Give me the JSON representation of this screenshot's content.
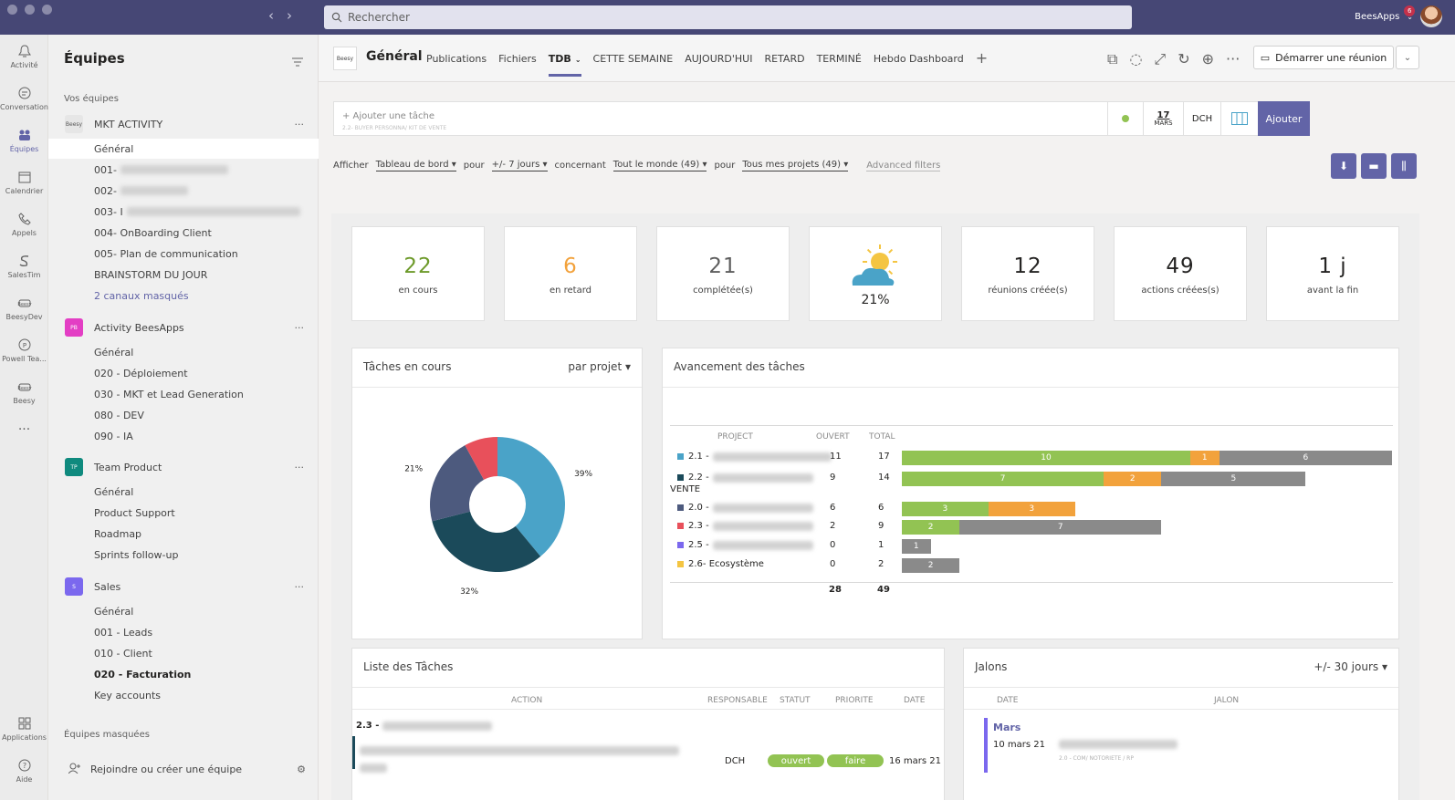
{
  "titlebar": {
    "search_placeholder": "Rechercher",
    "account": "BeesApps",
    "notif_count": "6"
  },
  "rail": [
    {
      "label": "Activité",
      "icon": "bell-icon"
    },
    {
      "label": "Conversation",
      "icon": "chat-icon"
    },
    {
      "label": "Équipes",
      "icon": "teams-icon",
      "active": true
    },
    {
      "label": "Calendrier",
      "icon": "calendar-icon"
    },
    {
      "label": "Appels",
      "icon": "phone-icon"
    },
    {
      "label": "SalesTim",
      "icon": "salestim-icon"
    },
    {
      "label": "BeesyDev",
      "icon": "beesy-icon"
    },
    {
      "label": "Powell Tea...",
      "icon": "powell-icon"
    },
    {
      "label": "Beesy",
      "icon": "beesy-icon"
    }
  ],
  "rail_more": "...",
  "rail_bottom": [
    {
      "label": "Applications",
      "icon": "apps-icon"
    },
    {
      "label": "Aide",
      "icon": "help-icon"
    }
  ],
  "teams_pane": {
    "title": "Équipes",
    "your_teams": "Vos équipes",
    "hidden_teams": "Équipes masquées",
    "join": "Rejoindre ou créer une équipe",
    "teams": [
      {
        "name": "MKT ACTIVITY",
        "logo": "Beesy",
        "color": "#e6e6e6",
        "channels": [
          "Général",
          "001-",
          "002-",
          "003- I",
          "004- OnBoarding Client",
          "005- Plan de communication",
          "BRAINSTORM DU JOUR",
          "2 canaux masqués"
        ]
      },
      {
        "name": "Activity BeesApps",
        "logo": "PB",
        "color": "#e33ec4",
        "channels": [
          "Général",
          "020 - Déploiement",
          "030 - MKT et Lead Generation",
          "080 - DEV",
          "090 - IA"
        ]
      },
      {
        "name": "Team Product",
        "logo": "TP",
        "color": "#0f8a7e",
        "channels": [
          "Général",
          "Product Support",
          "Roadmap",
          "Sprints follow-up"
        ]
      },
      {
        "name": "Sales",
        "logo": "S",
        "color": "#7b68ee",
        "channels": [
          "Général",
          "001 - Leads",
          "010 - Client",
          "020 - Facturation",
          "Key accounts"
        ]
      }
    ]
  },
  "header": {
    "logo": "Beesy",
    "title": "Général",
    "tabs": [
      "Publications",
      "Fichiers",
      "TDB",
      "CETTE SEMAINE",
      "AUJOURD'HUI",
      "RETARD",
      "TERMINÉ",
      "Hebdo Dashboard"
    ],
    "meet_button": "Démarrer une réunion"
  },
  "add_task": {
    "placeholder": "+ Ajouter une tâche",
    "hint": "2.2- BUYER PERSONNA/ KIT DE VENTE",
    "date_day": "17",
    "date_month": "MARS",
    "assignee": "DCH",
    "add_label": "Ajouter"
  },
  "filters": {
    "show": "Afficher",
    "view": "Tableau de bord",
    "for1": "pour",
    "period": "+/- 7 jours",
    "about": "concernant",
    "who": "Tout le monde (49)",
    "for2": "pour",
    "projects": "Tous mes projets (49)",
    "advanced": "Advanced filters"
  },
  "kpis": [
    {
      "value": "22",
      "label": "en cours",
      "color": "#6d9a2a"
    },
    {
      "value": "6",
      "label": "en retard",
      "color": "#f2a23c"
    },
    {
      "value": "21",
      "label": "complétée(s)",
      "color": "#5e5e5e"
    },
    {
      "value": "21%",
      "label": "",
      "icon": "weather-icon"
    },
    {
      "value": "12",
      "label": "réunions créée(s)",
      "color": "#252423"
    },
    {
      "value": "49",
      "label": "actions créées(s)",
      "color": "#252423"
    },
    {
      "value": "1 j",
      "label": "avant la fin",
      "color": "#252423"
    }
  ],
  "tasks_card": {
    "title": "Tâches en cours",
    "group": "par projet"
  },
  "chart_data": {
    "type": "pie",
    "categories": [
      "2.1",
      "2.2",
      "2.0",
      "2.3"
    ],
    "values": [
      39,
      32,
      21,
      8
    ],
    "labels": [
      "39%",
      "32%",
      "21%",
      ""
    ],
    "colors": [
      "#4aa3c8",
      "#1b4a5a",
      "#4d5a7e",
      "#e8505b"
    ]
  },
  "progress_card": {
    "title": "Avancement des tâches",
    "headers": [
      "PROJECT",
      "OUVERT",
      "TOTAL"
    ],
    "rows": [
      {
        "code": "2.1 -",
        "color": "#4aa3c8",
        "open": "11",
        "total": "17",
        "done": 10,
        "late": 1,
        "rest": 6
      },
      {
        "code": "2.2 -",
        "extra": "VENTE",
        "color": "#1b4a5a",
        "open": "9",
        "total": "14",
        "done": 7,
        "late": 2,
        "rest": 5
      },
      {
        "code": "2.0 -",
        "color": "#4d5a7e",
        "open": "6",
        "total": "6",
        "done": 3,
        "late": 3,
        "rest": 0
      },
      {
        "code": "2.3 -",
        "color": "#e8505b",
        "open": "2",
        "total": "9",
        "done": 2,
        "late": 0,
        "rest": 7
      },
      {
        "code": "2.5 -",
        "color": "#7b68ee",
        "open": "0",
        "total": "1",
        "done": 0,
        "late": 0,
        "rest": 1
      },
      {
        "code": "2.6- Ecosystème",
        "color": "#f4c542",
        "open": "0",
        "total": "2",
        "done": 0,
        "late": 0,
        "rest": 2
      }
    ],
    "sum_open": "28",
    "sum_total": "49",
    "bar_colors": {
      "done": "#92c353",
      "late": "#f2a23c",
      "rest": "#8a8a8a"
    }
  },
  "task_list": {
    "title": "Liste des Tâches",
    "headers": [
      "ACTION",
      "RESPONSABLE",
      "STATUT",
      "PRIORITE",
      "DATE"
    ],
    "group": "2.3 -",
    "row": {
      "owner": "DCH",
      "status": "ouvert",
      "priority": "faire",
      "date": "16 mars 21"
    }
  },
  "milestones": {
    "title": "Jalons",
    "range": "+/- 30 jours",
    "headers": [
      "DATE",
      "JALON"
    ],
    "month": "Mars",
    "date": "10 mars 21",
    "tag": "2.0 - COM/ NOTORIETE / RP"
  }
}
